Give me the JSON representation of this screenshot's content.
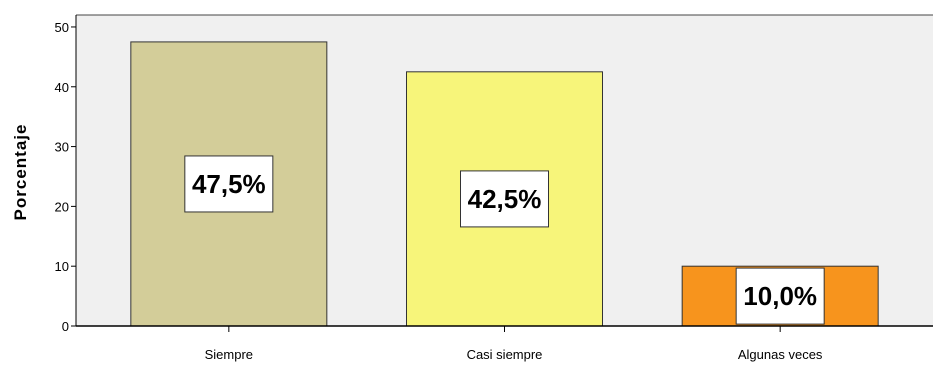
{
  "chart_data": {
    "type": "bar",
    "categories": [
      "Siempre",
      "Casi siempre",
      "Algunas veces"
    ],
    "values": [
      47.5,
      42.5,
      10.0
    ],
    "data_labels": [
      "47,5%",
      "42,5%",
      "10,0%"
    ],
    "bar_colors": [
      "#d3cd99",
      "#f7f57a",
      "#f7941d"
    ],
    "plot_background": "#f0f0f0",
    "ylabel": "Porcentaje",
    "ylim": [
      0,
      52
    ],
    "yticks": [
      0,
      10,
      20,
      30,
      40,
      50
    ],
    "ytick_labels": [
      "0",
      "10",
      "20",
      "30",
      "40",
      "50"
    ],
    "grid": false,
    "legend": "none"
  }
}
